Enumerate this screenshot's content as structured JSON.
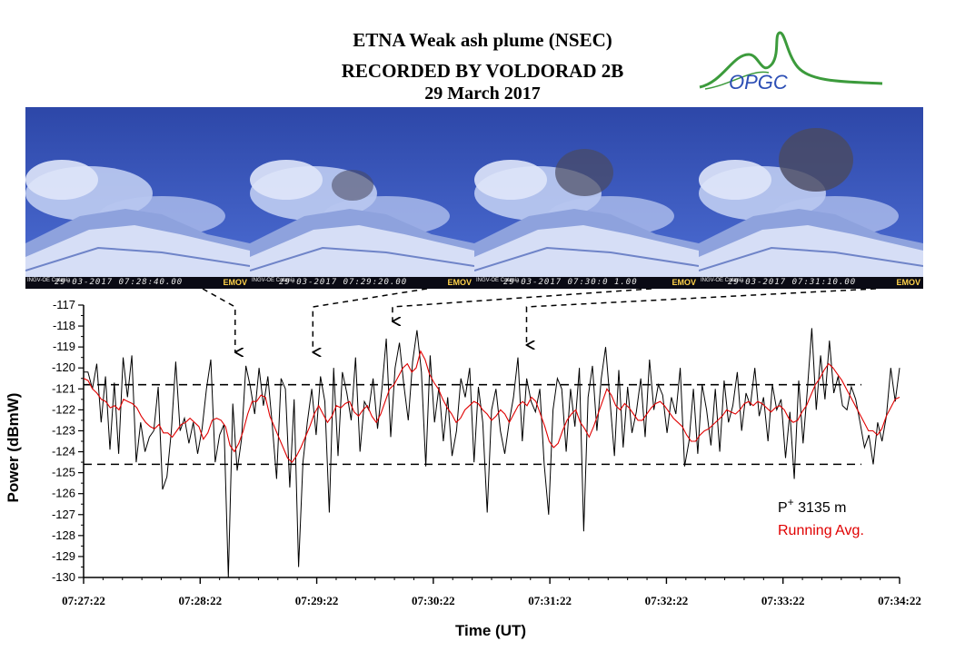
{
  "header": {
    "title_line1": "ETNA Weak ash plume (NSEC)",
    "title_line2": "RECORDED BY VOLDORAD 2B",
    "title_line3": "29 March 2017",
    "logo_text": "OPGC"
  },
  "photos": [
    {
      "timestamp": "29-03-2017 07:28:40.00",
      "brand": "EMOV",
      "institute": "INGV-OE Catania",
      "plume": 0
    },
    {
      "timestamp": "29-03-2017 07:29:20.00",
      "brand": "EMOV",
      "institute": "INGV-OE Catania",
      "plume": 1
    },
    {
      "timestamp": "29-03-2017 07:30:0 1.00",
      "brand": "EMOV",
      "institute": "INGV-OE Catania",
      "plume": 2
    },
    {
      "timestamp": "29-03-2017 07:31:10.00",
      "brand": "EMOV",
      "institute": "INGV-OE Catania",
      "plume": 3
    }
  ],
  "chart_data": {
    "type": "line",
    "xlabel": "Time (UT)",
    "ylabel": "Power (dBmW)",
    "ylim": [
      -130,
      -117
    ],
    "yticks": [
      -117,
      -118,
      -119,
      -120,
      -121,
      -122,
      -123,
      -124,
      -125,
      -126,
      -127,
      -128,
      -129,
      -130
    ],
    "x_tick_labels": [
      "07:27:22",
      "07:28:22",
      "07:29:22",
      "07:30:22",
      "07:31:22",
      "07:32:22",
      "07:33:22",
      "07:34:22"
    ],
    "x_range_seconds": [
      0,
      420
    ],
    "grid": false,
    "legend_placement": "bottom-right",
    "thresholds": [
      -120.8,
      -124.6
    ],
    "annotation_times": [
      "07:28:40",
      "07:29:20",
      "07:30:01",
      "07:31:10"
    ],
    "colors": {
      "raw": "#000000",
      "avg": "#e00000"
    },
    "series": [
      {
        "name": "P+ 3135 m",
        "color": "#000000",
        "values": [
          -120.2,
          -120.2,
          -121.0,
          -119.8,
          -122.6,
          -120.4,
          -123.9,
          -120.7,
          -124.1,
          -119.5,
          -121.4,
          -119.4,
          -124.5,
          -122.6,
          -124.0,
          -123.3,
          -123.0,
          -120.9,
          -125.8,
          -125.2,
          -123.0,
          -119.7,
          -123.0,
          -122.4,
          -123.6,
          -122.6,
          -124.1,
          -122.9,
          -121.0,
          -119.6,
          -124.5,
          -123.2,
          -122.7,
          -130.0,
          -121.7,
          -124.9,
          -123.4,
          -119.9,
          -120.9,
          -122.2,
          -120.0,
          -121.8,
          -120.4,
          -122.7,
          -125.3,
          -120.5,
          -121.0,
          -125.7,
          -121.5,
          -129.5,
          -124.5,
          -122.6,
          -121.0,
          -123.2,
          -120.4,
          -121.6,
          -126.9,
          -120.0,
          -124.2,
          -120.2,
          -121.2,
          -122.5,
          -119.5,
          -124.0,
          -121.6,
          -122.0,
          -120.5,
          -122.9,
          -121.0,
          -118.6,
          -123.3,
          -120.0,
          -118.8,
          -120.8,
          -122.5,
          -119.7,
          -118.2,
          -120.2,
          -124.7,
          -119.4,
          -122.6,
          -120.9,
          -123.5,
          -121.4,
          -124.2,
          -123.0,
          -120.5,
          -121.4,
          -120.0,
          -124.5,
          -120.9,
          -122.6,
          -126.9,
          -122.0,
          -121.0,
          -123.0,
          -124.1,
          -122.6,
          -121.4,
          -119.5,
          -123.5,
          -120.5,
          -121.6,
          -122.1,
          -121.0,
          -124.6,
          -127.0,
          -122.0,
          -120.5,
          -121.0,
          -124.0,
          -121.0,
          -122.8,
          -120.0,
          -127.8,
          -121.4,
          -119.9,
          -123.0,
          -120.5,
          -119.0,
          -121.6,
          -124.2,
          -120.1,
          -123.8,
          -120.9,
          -123.1,
          -122.1,
          -120.5,
          -123.3,
          -119.6,
          -122.0,
          -120.8,
          -121.3,
          -123.1,
          -121.4,
          -122.2,
          -120.0,
          -124.7,
          -123.5,
          -121.0,
          -124.1,
          -120.8,
          -122.0,
          -123.7,
          -121.0,
          -124.0,
          -120.6,
          -122.6,
          -121.8,
          -120.2,
          -123.0,
          -121.2,
          -121.8,
          -120.0,
          -122.3,
          -121.4,
          -123.5,
          -120.8,
          -122.0,
          -121.5,
          -124.3,
          -122.1,
          -125.3,
          -120.6,
          -123.6,
          -121.0,
          -118.1,
          -122.0,
          -119.4,
          -121.5,
          -118.7,
          -121.2,
          -120.4,
          -121.8,
          -122.0,
          -120.9,
          -121.5,
          -122.6,
          -123.8,
          -123.2,
          -124.6,
          -122.6,
          -123.5,
          -122.3,
          -120.0,
          -121.6,
          -120.0
        ]
      },
      {
        "name": "Running Avg.",
        "color": "#e00000",
        "values": [
          -120.5,
          -120.6,
          -121.0,
          -121.2,
          -121.5,
          -121.6,
          -121.9,
          -121.8,
          -122.0,
          -121.5,
          -121.6,
          -121.7,
          -121.9,
          -122.3,
          -122.6,
          -122.8,
          -122.9,
          -122.7,
          -123.1,
          -123.1,
          -123.3,
          -123.0,
          -122.7,
          -122.6,
          -122.4,
          -122.6,
          -122.8,
          -123.4,
          -123.1,
          -122.5,
          -122.4,
          -122.5,
          -122.8,
          -123.7,
          -124.0,
          -123.6,
          -123.0,
          -122.2,
          -121.6,
          -121.6,
          -121.3,
          -121.4,
          -122.3,
          -122.8,
          -123.3,
          -123.8,
          -124.3,
          -124.5,
          -124.2,
          -123.8,
          -123.3,
          -122.8,
          -122.2,
          -121.8,
          -122.2,
          -122.6,
          -122.3,
          -121.8,
          -121.9,
          -121.7,
          -121.6,
          -122.1,
          -122.3,
          -122.0,
          -121.8,
          -122.3,
          -122.6,
          -122.2,
          -121.6,
          -121.0,
          -120.8,
          -120.4,
          -120.0,
          -119.8,
          -120.2,
          -120.0,
          -119.2,
          -119.6,
          -120.3,
          -120.7,
          -121.0,
          -121.5,
          -121.9,
          -122.2,
          -122.6,
          -122.4,
          -122.0,
          -121.8,
          -121.6,
          -121.7,
          -122.0,
          -122.2,
          -122.5,
          -122.3,
          -122.0,
          -122.2,
          -122.6,
          -122.2,
          -121.8,
          -121.6,
          -121.8,
          -121.4,
          -121.6,
          -122.2,
          -122.8,
          -123.5,
          -123.8,
          -123.6,
          -123.0,
          -122.5,
          -122.2,
          -122.0,
          -122.6,
          -122.9,
          -123.3,
          -122.8,
          -122.2,
          -121.6,
          -121.0,
          -121.3,
          -121.8,
          -122.0,
          -121.7,
          -121.9,
          -122.2,
          -122.5,
          -122.5,
          -122.2,
          -121.9,
          -121.7,
          -121.6,
          -121.8,
          -122.1,
          -122.4,
          -122.6,
          -122.8,
          -123.2,
          -123.5,
          -123.5,
          -123.2,
          -123.0,
          -122.9,
          -122.7,
          -122.5,
          -122.3,
          -122.0,
          -122.1,
          -122.2,
          -122.0,
          -121.7,
          -121.6,
          -121.8,
          -121.6,
          -121.7,
          -121.9,
          -122.1,
          -121.9,
          -121.8,
          -122.0,
          -122.4,
          -122.6,
          -122.5,
          -122.1,
          -121.8,
          -121.3,
          -120.8,
          -120.5,
          -120.1,
          -119.8,
          -120.0,
          -120.3,
          -120.6,
          -121.0,
          -121.4,
          -121.8,
          -122.2,
          -122.6,
          -123.0,
          -123.0,
          -123.2,
          -122.9,
          -122.3,
          -121.9,
          -121.5,
          -121.4
        ]
      }
    ],
    "legend": [
      {
        "prefix": "P",
        "superscript": "+",
        "label": " 3135 m",
        "color": "#000000"
      },
      {
        "label": "Running Avg.",
        "color": "#e00000"
      }
    ]
  }
}
